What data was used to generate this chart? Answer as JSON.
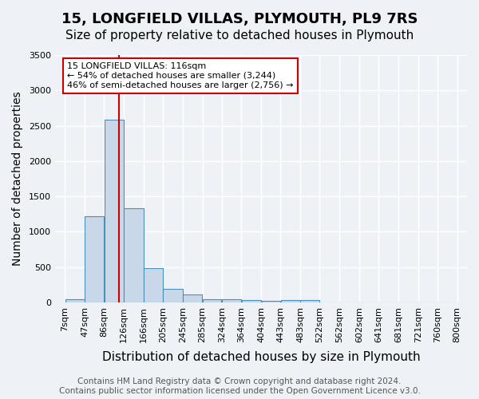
{
  "title1": "15, LONGFIELD VILLAS, PLYMOUTH, PL9 7RS",
  "title2": "Size of property relative to detached houses in Plymouth",
  "xlabel": "Distribution of detached houses by size in Plymouth",
  "ylabel": "Number of detached properties",
  "bin_labels": [
    "7sqm",
    "47sqm",
    "86sqm",
    "126sqm",
    "166sqm",
    "205sqm",
    "245sqm",
    "285sqm",
    "324sqm",
    "364sqm",
    "404sqm",
    "443sqm",
    "483sqm",
    "522sqm",
    "562sqm",
    "602sqm",
    "641sqm",
    "681sqm",
    "721sqm",
    "760sqm",
    "800sqm"
  ],
  "values": [
    50,
    1220,
    2580,
    1330,
    490,
    195,
    110,
    50,
    45,
    30,
    25,
    30,
    30,
    0,
    0,
    0,
    0,
    0,
    0,
    0
  ],
  "bin_edges": [
    7,
    47,
    86,
    126,
    166,
    205,
    245,
    285,
    324,
    364,
    404,
    443,
    483,
    522,
    562,
    602,
    641,
    681,
    721,
    760,
    800
  ],
  "bar_color": "#c8d8e8",
  "bar_edge_color": "#4a90b8",
  "vline_x": 116,
  "vline_color": "#cc0000",
  "ylim": [
    0,
    3500
  ],
  "yticks": [
    0,
    500,
    1000,
    1500,
    2000,
    2500,
    3000,
    3500
  ],
  "annotation_title": "15 LONGFIELD VILLAS: 116sqm",
  "annotation_line1": "← 54% of detached houses are smaller (3,244)",
  "annotation_line2": "46% of semi-detached houses are larger (2,756) →",
  "annotation_box_color": "#ffffff",
  "annotation_box_edge": "#cc0000",
  "footer1": "Contains HM Land Registry data © Crown copyright and database right 2024.",
  "footer2": "Contains public sector information licensed under the Open Government Licence v3.0.",
  "background_color": "#eef2f7",
  "grid_color": "#ffffff",
  "title1_fontsize": 13,
  "title2_fontsize": 11,
  "xlabel_fontsize": 11,
  "ylabel_fontsize": 10,
  "tick_fontsize": 8,
  "footer_fontsize": 7.5
}
